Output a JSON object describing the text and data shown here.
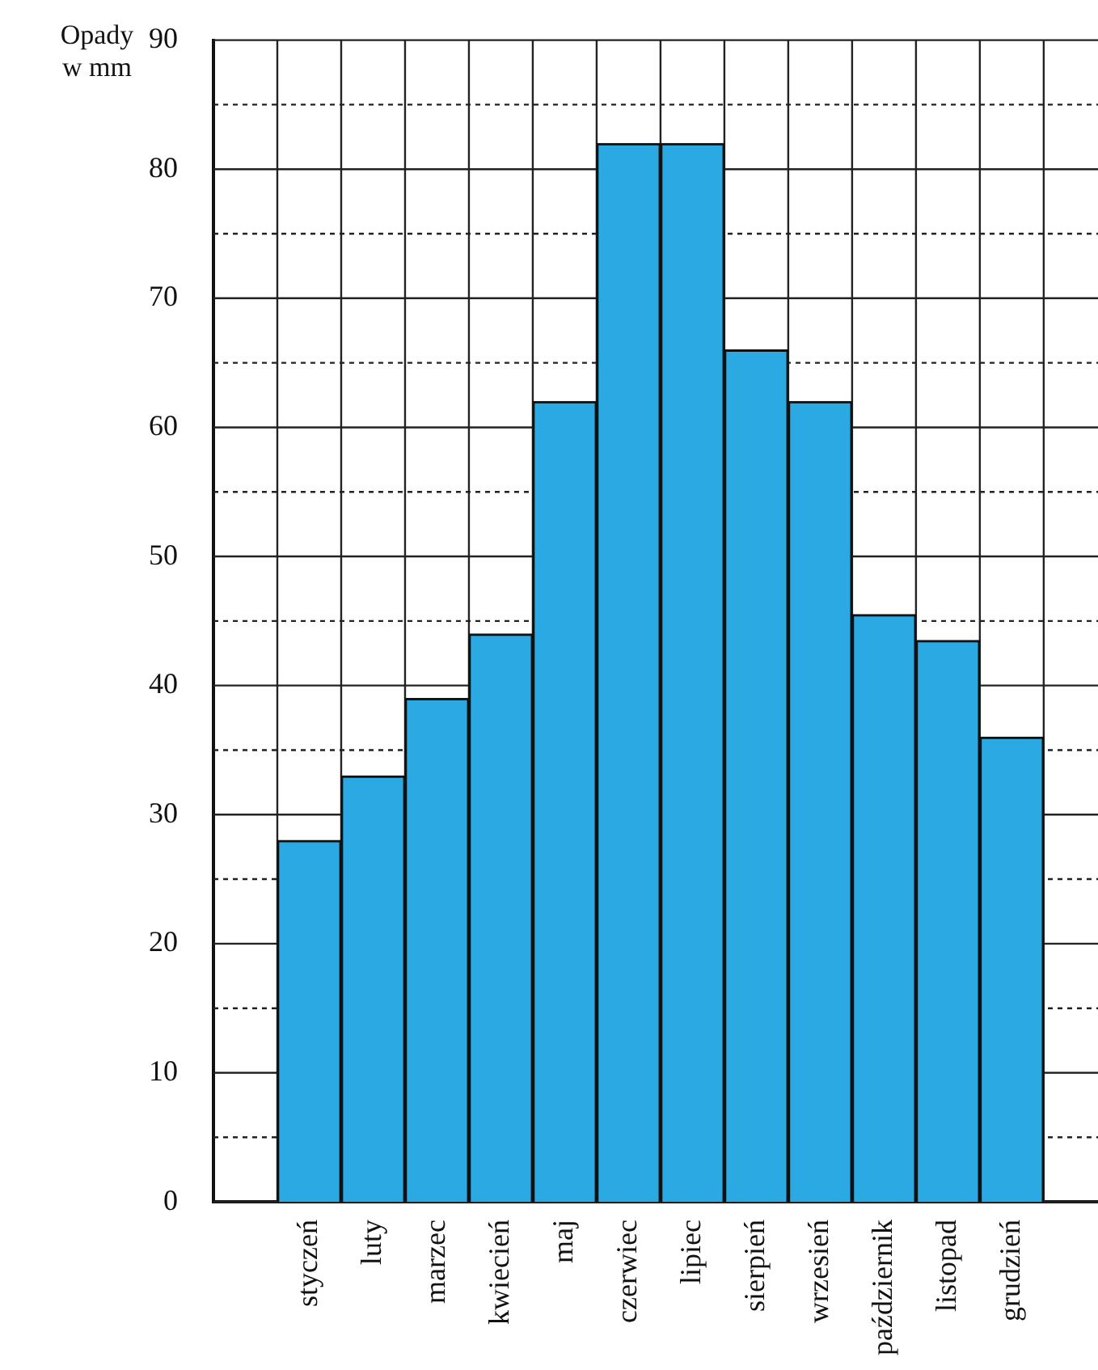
{
  "chart_data": {
    "type": "bar",
    "ylabel": "Opady w mm",
    "categories": [
      "styczeń",
      "luty",
      "marzec",
      "kwiecień",
      "maj",
      "czerwiec",
      "lipiec",
      "sierpień",
      "wrzesień",
      "październik",
      "listopad",
      "grudzień"
    ],
    "values": [
      28,
      33,
      39,
      44,
      62,
      82,
      82,
      66,
      62,
      45.5,
      43.5,
      36
    ],
    "color": "#2aa9e2",
    "ylim": [
      0,
      90
    ],
    "yticks": [
      0,
      {
        "value": 5,
        "label": null
      },
      10,
      {
        "value": 15,
        "label": null
      },
      20,
      {
        "value": 25,
        "label": null
      },
      30,
      {
        "value": 35,
        "label": null
      },
      40,
      {
        "value": 45,
        "label": null
      },
      50,
      {
        "value": 55,
        "label": null
      },
      60,
      {
        "value": 65,
        "label": null
      },
      70,
      {
        "value": 75,
        "label": null
      },
      80,
      {
        "value": 85,
        "label": null
      },
      90
    ],
    "grid": true
  }
}
